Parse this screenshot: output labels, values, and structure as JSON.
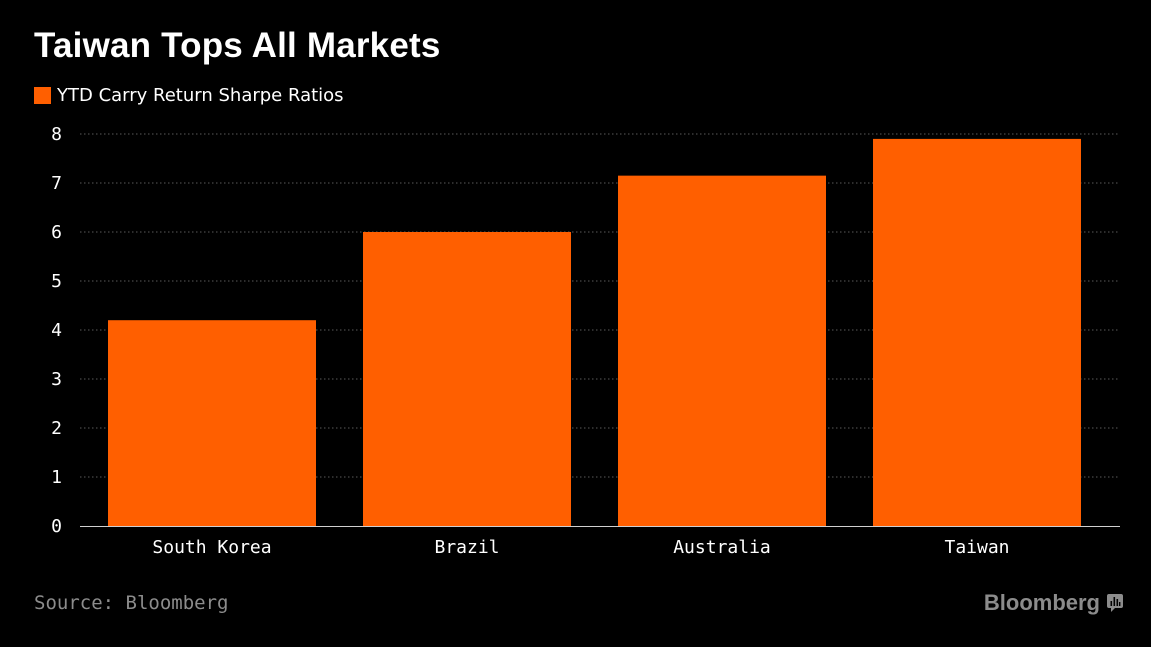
{
  "header": {
    "title": "Taiwan Tops All Markets"
  },
  "legend": {
    "label": "YTD Carry Return Sharpe Ratios"
  },
  "footer": {
    "source": "Source: Bloomberg",
    "brand": "Bloomberg",
    "brand_icon": "bloomberg-terminal-icon"
  },
  "colors": {
    "background": "#000000",
    "bar": "#ff5f00",
    "text": "#ffffff",
    "muted_text": "#8c8c8c",
    "grid": "#5a5a5a"
  },
  "chart_data": {
    "type": "bar",
    "title": "Taiwan Tops All Markets",
    "xlabel": "",
    "ylabel": "",
    "categories": [
      "South Korea",
      "Brazil",
      "Australia",
      "Taiwan"
    ],
    "series": [
      {
        "name": "YTD Carry Return Sharpe Ratios",
        "values": [
          4.2,
          6.0,
          7.15,
          7.9
        ]
      }
    ],
    "ylim": [
      0,
      8
    ],
    "yticks": [
      0,
      1,
      2,
      3,
      4,
      5,
      6,
      7,
      8
    ],
    "grid": true,
    "legend_position": "top-left"
  }
}
